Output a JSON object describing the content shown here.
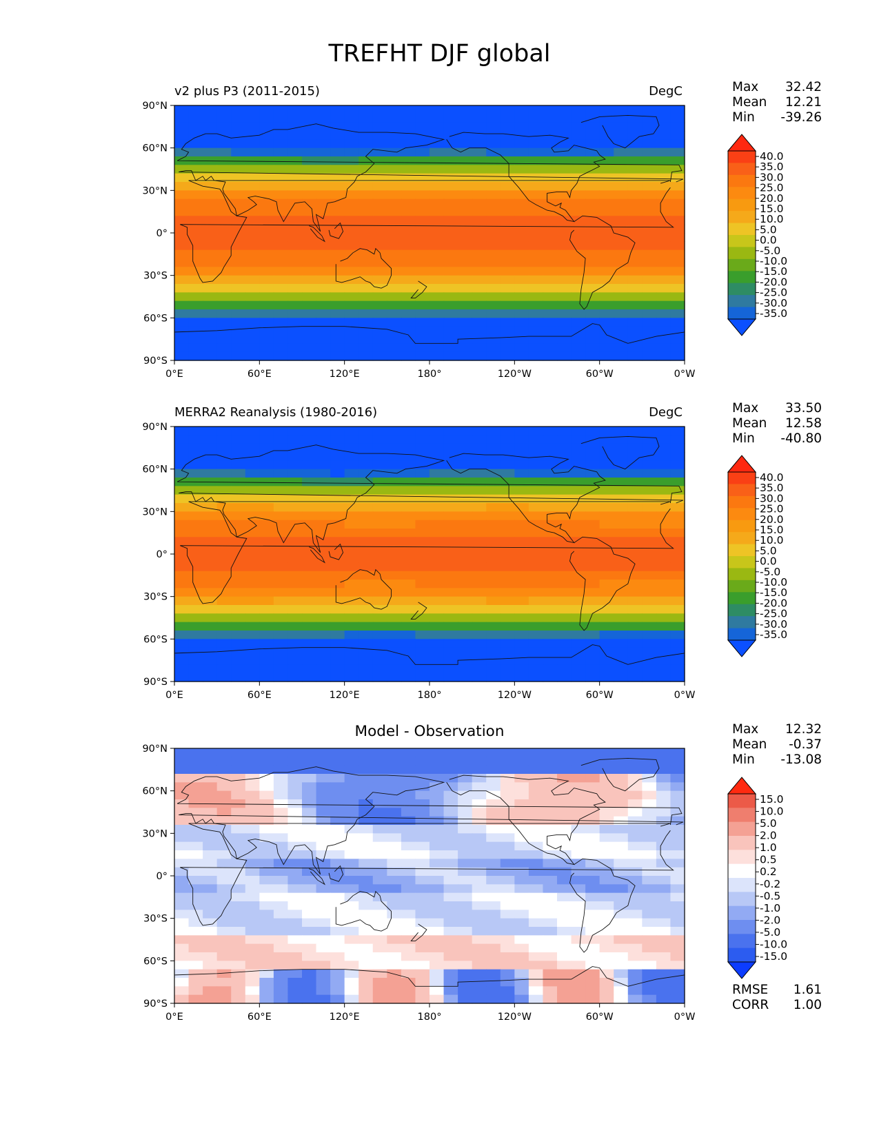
{
  "title": "TREFHT DJF global",
  "maps": {
    "lat_ticks": [
      "90°N",
      "60°N",
      "30°N",
      "0°",
      "30°S",
      "60°S",
      "90°S"
    ],
    "lon_ticks": [
      "0°E",
      "60°E",
      "120°E",
      "180°",
      "120°W",
      "60°W",
      "0°W"
    ]
  },
  "panels": [
    {
      "left_title": "v2 plus P3 (2011-2015)",
      "center_title": "",
      "units": "DegC",
      "stats": [
        {
          "label": "Max",
          "value": "32.42"
        },
        {
          "label": "Mean",
          "value": "12.21"
        },
        {
          "label": "Min",
          "value": "-39.26"
        }
      ],
      "colorbar_ticks": [
        "40.0",
        "35.0",
        "30.0",
        "25.0",
        "20.0",
        "15.0",
        "10.0",
        "5.0",
        "0.0",
        "-5.0",
        "-10.0",
        "-15.0",
        "-20.0",
        "-25.0",
        "-30.0",
        "-35.0"
      ]
    },
    {
      "left_title": "MERRA2 Reanalysis (1980-2016)",
      "center_title": "",
      "units": "DegC",
      "stats": [
        {
          "label": "Max",
          "value": "33.50"
        },
        {
          "label": "Mean",
          "value": "12.58"
        },
        {
          "label": "Min",
          "value": "-40.80"
        }
      ],
      "colorbar_ticks": [
        "40.0",
        "35.0",
        "30.0",
        "25.0",
        "20.0",
        "15.0",
        "10.0",
        "5.0",
        "0.0",
        "-5.0",
        "-10.0",
        "-15.0",
        "-20.0",
        "-25.0",
        "-30.0",
        "-35.0"
      ]
    },
    {
      "left_title": "",
      "center_title": "Model - Observation",
      "units": "",
      "stats": [
        {
          "label": "Max",
          "value": "12.32"
        },
        {
          "label": "Mean",
          "value": "-0.37"
        },
        {
          "label": "Min",
          "value": "-13.08"
        }
      ],
      "colorbar_ticks": [
        "15.0",
        "10.0",
        "5.0",
        "2.0",
        "1.0",
        "0.5",
        "0.2",
        "-0.2",
        "-0.5",
        "-1.0",
        "-2.0",
        "-5.0",
        "-10.0",
        "-15.0"
      ],
      "metrics": [
        {
          "label": "RMSE",
          "value": "1.61"
        },
        {
          "label": "CORR",
          "value": "1.00"
        }
      ]
    }
  ],
  "colors": {
    "temperature_scale": [
      "#0b50ff",
      "#1565d8",
      "#2f7aa0",
      "#2e8c64",
      "#3a9e2c",
      "#6aaa1a",
      "#9ab812",
      "#c8c61a",
      "#eec425",
      "#f5a91a",
      "#f89a10",
      "#fc8a10",
      "#fb7810",
      "#f96018",
      "#fa4015",
      "#ff2810"
    ],
    "diff_scale": [
      "#0c3cff",
      "#2c5cf0",
      "#4a72ee",
      "#6e8ef0",
      "#92aaf3",
      "#b8c8f6",
      "#dce4fb",
      "#ffffff",
      "#fde0dc",
      "#f9c4bc",
      "#f4a194",
      "#ef7e6e",
      "#ec5a48",
      "#ff2a10"
    ]
  },
  "chart_data": [
    {
      "type": "heatmap",
      "title": "v2 plus P3 (2011-2015)",
      "units": "DegC",
      "xlabel": "",
      "ylabel": "",
      "x_range_deg": [
        0,
        360
      ],
      "y_range_deg": [
        -90,
        90
      ],
      "colorbar_levels": [
        -35,
        -30,
        -25,
        -20,
        -15,
        -10,
        -5,
        0,
        5,
        10,
        15,
        20,
        25,
        30,
        35,
        40
      ],
      "stats": {
        "max": 32.42,
        "mean": 12.21,
        "min": -39.26
      }
    },
    {
      "type": "heatmap",
      "title": "MERRA2 Reanalysis (1980-2016)",
      "units": "DegC",
      "xlabel": "",
      "ylabel": "",
      "x_range_deg": [
        0,
        360
      ],
      "y_range_deg": [
        -90,
        90
      ],
      "colorbar_levels": [
        -35,
        -30,
        -25,
        -20,
        -15,
        -10,
        -5,
        0,
        5,
        10,
        15,
        20,
        25,
        30,
        35,
        40
      ],
      "stats": {
        "max": 33.5,
        "mean": 12.58,
        "min": -40.8
      }
    },
    {
      "type": "heatmap",
      "title": "Model - Observation",
      "xlabel": "",
      "ylabel": "",
      "x_range_deg": [
        0,
        360
      ],
      "y_range_deg": [
        -90,
        90
      ],
      "colorbar_levels": [
        -15,
        -10,
        -5,
        -2,
        -1,
        -0.5,
        -0.2,
        0.2,
        0.5,
        1,
        2,
        5,
        10,
        15
      ],
      "stats": {
        "max": 12.32,
        "mean": -0.37,
        "min": -13.08
      },
      "metrics": {
        "rmse": 1.61,
        "corr": 1.0
      }
    }
  ]
}
